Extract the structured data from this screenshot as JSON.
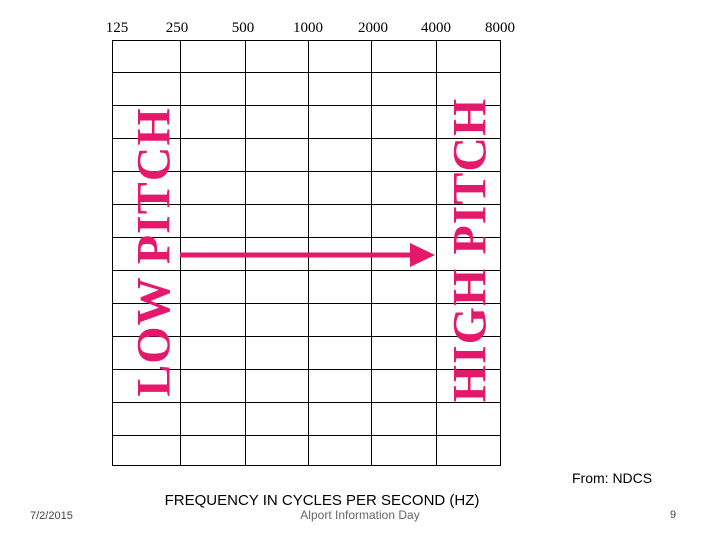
{
  "frequencies": [
    "125",
    "250",
    "500",
    "1000",
    "2000",
    "4000",
    "8000"
  ],
  "left_label": "LOW PITCH",
  "right_label": "HIGH PITCH",
  "accent_color": "#e5196b",
  "x_axis_title": "FREQUENCY IN CYCLES PER SECOND (HZ)",
  "source": "From: NDCS",
  "footer": {
    "date": "7/2/2015",
    "center": "Alport Information Day",
    "page": "9"
  }
}
